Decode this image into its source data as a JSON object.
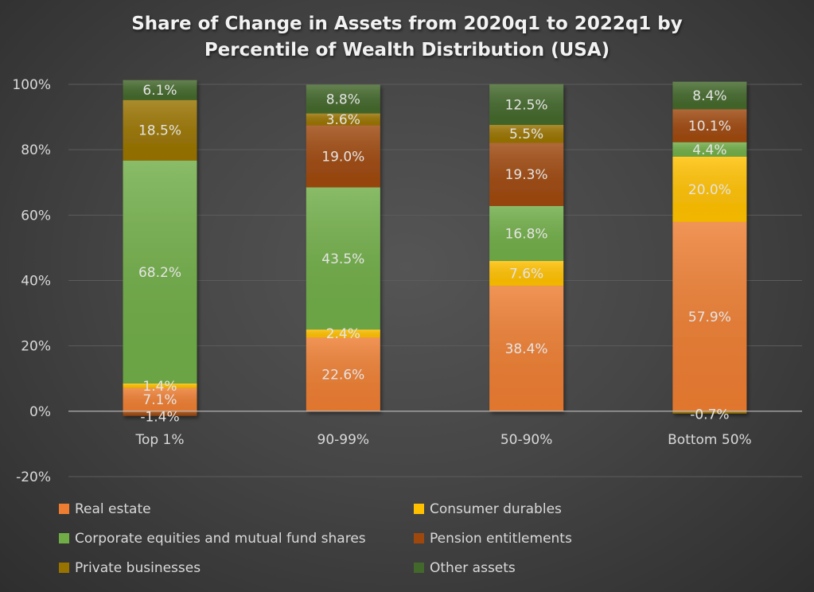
{
  "chart_data": {
    "type": "bar",
    "stacked": true,
    "title": "Share of Change in Assets from 2020q1 to 2022q1 by Percentile of Wealth Distribution (USA)",
    "title_lines": [
      "Share of Change in Assets from 2020q1 to 2022q1 by",
      "Percentile of Wealth Distribution (USA)"
    ],
    "xlabel": "",
    "ylabel": "",
    "ylim": [
      -20,
      100
    ],
    "yticks": [
      100,
      80,
      60,
      40,
      20,
      0,
      -20
    ],
    "ytick_labels": [
      "100%",
      "80%",
      "60%",
      "40%",
      "20%",
      "0%",
      "-20%"
    ],
    "grid": true,
    "legend_position": "bottom",
    "categories": [
      "Top 1%",
      "90-99%",
      "50-90%",
      "Bottom 50%"
    ],
    "series": [
      {
        "name": "Real estate",
        "color": "#ed7d31",
        "values": [
          7.1,
          22.6,
          38.4,
          57.9
        ],
        "labels": [
          "7.1%",
          "22.6%",
          "38.4%",
          "57.9%"
        ]
      },
      {
        "name": "Consumer durables",
        "color": "#ffc000",
        "values": [
          1.4,
          2.4,
          7.6,
          20.0
        ],
        "labels": [
          "1.4%",
          "2.4%",
          "7.6%",
          "20.0%"
        ]
      },
      {
        "name": "Corporate equities and mutual fund shares",
        "color": "#70ad47",
        "values": [
          68.2,
          43.5,
          16.8,
          4.4
        ],
        "labels": [
          "68.2%",
          "43.5%",
          "16.8%",
          "4.4%"
        ]
      },
      {
        "name": "Pension entitlements",
        "color": "#9e480e",
        "values": [
          -1.4,
          19.0,
          19.3,
          10.1
        ],
        "labels": [
          "-1.4%",
          "19.0%",
          "19.3%",
          "10.1%"
        ]
      },
      {
        "name": "Private businesses",
        "color": "#997300",
        "values": [
          18.5,
          3.6,
          5.5,
          -0.7
        ],
        "labels": [
          "18.5%",
          "3.6%",
          "5.5%",
          "-0.7%"
        ]
      },
      {
        "name": "Other assets",
        "color": "#43682b",
        "values": [
          6.1,
          8.8,
          12.5,
          8.4
        ],
        "labels": [
          "6.1%",
          "8.8%",
          "12.5%",
          "8.4%"
        ]
      }
    ]
  }
}
